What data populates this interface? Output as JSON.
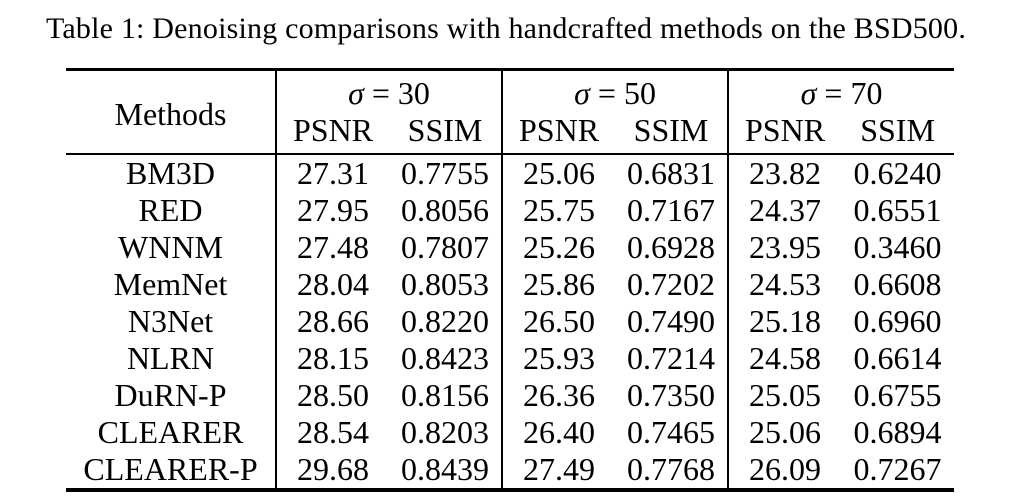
{
  "page": {
    "background": "#ffffff",
    "text_color": "#000000",
    "rule_color": "#000000"
  },
  "caption": "Table 1: Denoising comparisons with handcrafted methods on the BSD500.",
  "table": {
    "methods_header": "Methods",
    "groups": [
      {
        "sigma": "σ",
        "rest": "= 30"
      },
      {
        "sigma": "σ",
        "rest": "= 50"
      },
      {
        "sigma": "σ",
        "rest": "= 70"
      }
    ],
    "metric_headers": [
      "PSNR",
      "SSIM"
    ],
    "rows": [
      {
        "method": "BM3D",
        "values": [
          "27.31",
          "0.7755",
          "25.06",
          "0.6831",
          "23.82",
          "0.6240"
        ]
      },
      {
        "method": "RED",
        "values": [
          "27.95",
          "0.8056",
          "25.75",
          "0.7167",
          "24.37",
          "0.6551"
        ]
      },
      {
        "method": "WNNM",
        "values": [
          "27.48",
          "0.7807",
          "25.26",
          "0.6928",
          "23.95",
          "0.3460"
        ]
      },
      {
        "method": "MemNet",
        "values": [
          "28.04",
          "0.8053",
          "25.86",
          "0.7202",
          "24.53",
          "0.6608"
        ]
      },
      {
        "method": "N3Net",
        "values": [
          "28.66",
          "0.8220",
          "26.50",
          "0.7490",
          "25.18",
          "0.6960"
        ]
      },
      {
        "method": "NLRN",
        "values": [
          "28.15",
          "0.8423",
          "25.93",
          "0.7214",
          "24.58",
          "0.6614"
        ]
      },
      {
        "method": "DuRN-P",
        "values": [
          "28.50",
          "0.8156",
          "26.36",
          "0.7350",
          "25.05",
          "0.6755"
        ]
      },
      {
        "method": "CLEARER",
        "values": [
          "28.54",
          "0.8203",
          "26.40",
          "0.7465",
          "25.06",
          "0.6894"
        ]
      },
      {
        "method": "CLEARER-P",
        "values": [
          "29.68",
          "0.8439",
          "27.49",
          "0.7768",
          "26.09",
          "0.7267"
        ]
      }
    ]
  }
}
